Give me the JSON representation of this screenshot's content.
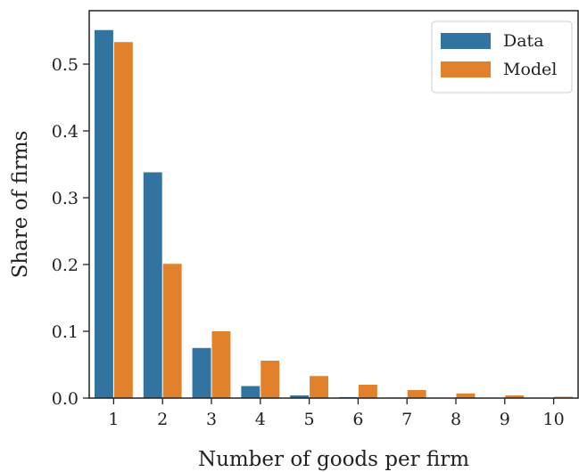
{
  "chart_data": {
    "type": "bar",
    "title": "",
    "xlabel": "Number of goods per firm",
    "ylabel": "Share of firms",
    "categories": [
      "1",
      "2",
      "3",
      "4",
      "5",
      "6",
      "7",
      "8",
      "9",
      "10"
    ],
    "series": [
      {
        "name": "Data",
        "color": "#3274a1",
        "values": [
          0.551,
          0.338,
          0.075,
          0.018,
          0.004,
          0.0015,
          0.0008,
          0.0005,
          0.0003,
          0.0002
        ]
      },
      {
        "name": "Model",
        "color": "#e1812c",
        "values": [
          0.533,
          0.201,
          0.1,
          0.056,
          0.033,
          0.02,
          0.012,
          0.007,
          0.004,
          0.002
        ]
      }
    ],
    "ylim": [
      0,
      0.58
    ],
    "yticks": [
      0.0,
      0.1,
      0.2,
      0.3,
      0.4,
      0.5
    ],
    "ytick_labels": [
      "0.0",
      "0.1",
      "0.2",
      "0.3",
      "0.4",
      "0.5"
    ],
    "grid": false,
    "legend_position": "top-right"
  }
}
